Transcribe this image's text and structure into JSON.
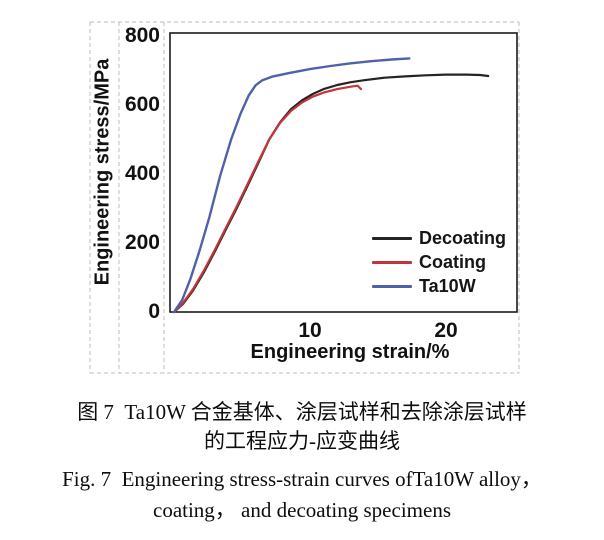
{
  "figure": {
    "captions": {
      "zh_line1": "图 7  Ta10W 合金基体、涂层试样和去除涂层试样",
      "zh_line2": "的工程应力-应变曲线",
      "en_line1": "Fig. 7  Engineering stress-strain curves ofTa10W alloy，",
      "en_line2": "coating， and decoating specimens"
    }
  },
  "chart_data": {
    "type": "line",
    "title": "",
    "xlabel": "Engineering strain/%",
    "ylabel": "Engineering stress/MPa",
    "xlim": [
      0,
      25.2
    ],
    "ylim": [
      0,
      808
    ],
    "xticks": [
      10,
      20
    ],
    "yticks": [
      0,
      200,
      400,
      600,
      800
    ],
    "grid": false,
    "tick_marks": "none",
    "legend_position": "inside-lower-right",
    "colors": {
      "decoating": "#242424",
      "coating": "#c23538",
      "ta10w": "#5061ac",
      "dashed_region_box": "#bdbdbd",
      "plot_border": "#1c1c1c"
    },
    "series": [
      {
        "name": "Decoating",
        "color": "#242424",
        "stroke_width": 2.2,
        "points": [
          [
            0,
            0
          ],
          [
            0.7,
            25
          ],
          [
            1.4,
            62
          ],
          [
            2.2,
            115
          ],
          [
            3.0,
            175
          ],
          [
            3.8,
            238
          ],
          [
            4.6,
            300
          ],
          [
            5.4,
            365
          ],
          [
            6.2,
            432
          ],
          [
            7.0,
            500
          ],
          [
            7.8,
            550
          ],
          [
            8.6,
            588
          ],
          [
            9.4,
            613
          ],
          [
            10.2,
            632
          ],
          [
            11,
            646
          ],
          [
            12,
            658
          ],
          [
            13,
            666
          ],
          [
            14,
            672
          ],
          [
            15.5,
            679
          ],
          [
            17,
            683
          ],
          [
            18.5,
            686
          ],
          [
            20,
            688
          ],
          [
            21.5,
            688
          ],
          [
            22.5,
            687
          ],
          [
            23.1,
            684
          ]
        ]
      },
      {
        "name": "Coating",
        "color": "#c23538",
        "stroke_width": 2.2,
        "points": [
          [
            0,
            0
          ],
          [
            0.7,
            28
          ],
          [
            1.4,
            66
          ],
          [
            2.2,
            120
          ],
          [
            3.0,
            180
          ],
          [
            3.8,
            243
          ],
          [
            4.6,
            305
          ],
          [
            5.4,
            370
          ],
          [
            6.2,
            436
          ],
          [
            7.0,
            500
          ],
          [
            7.8,
            548
          ],
          [
            8.6,
            583
          ],
          [
            9.4,
            607
          ],
          [
            10.2,
            624
          ],
          [
            11,
            636
          ],
          [
            12,
            646
          ],
          [
            13,
            653
          ],
          [
            13.5,
            656
          ],
          [
            13.75,
            646
          ]
        ]
      },
      {
        "name": "Ta10W",
        "color": "#5061ac",
        "stroke_width": 2.4,
        "points": [
          [
            0,
            0
          ],
          [
            0.6,
            35
          ],
          [
            1.2,
            95
          ],
          [
            1.9,
            180
          ],
          [
            2.6,
            275
          ],
          [
            3.4,
            395
          ],
          [
            4.2,
            500
          ],
          [
            4.9,
            575
          ],
          [
            5.5,
            628
          ],
          [
            6.0,
            657
          ],
          [
            6.5,
            672
          ],
          [
            7.2,
            682
          ],
          [
            8.5,
            693
          ],
          [
            10,
            704
          ],
          [
            11.5,
            713
          ],
          [
            13,
            721
          ],
          [
            14.5,
            727
          ],
          [
            16,
            732
          ],
          [
            17.3,
            735
          ]
        ]
      }
    ]
  }
}
